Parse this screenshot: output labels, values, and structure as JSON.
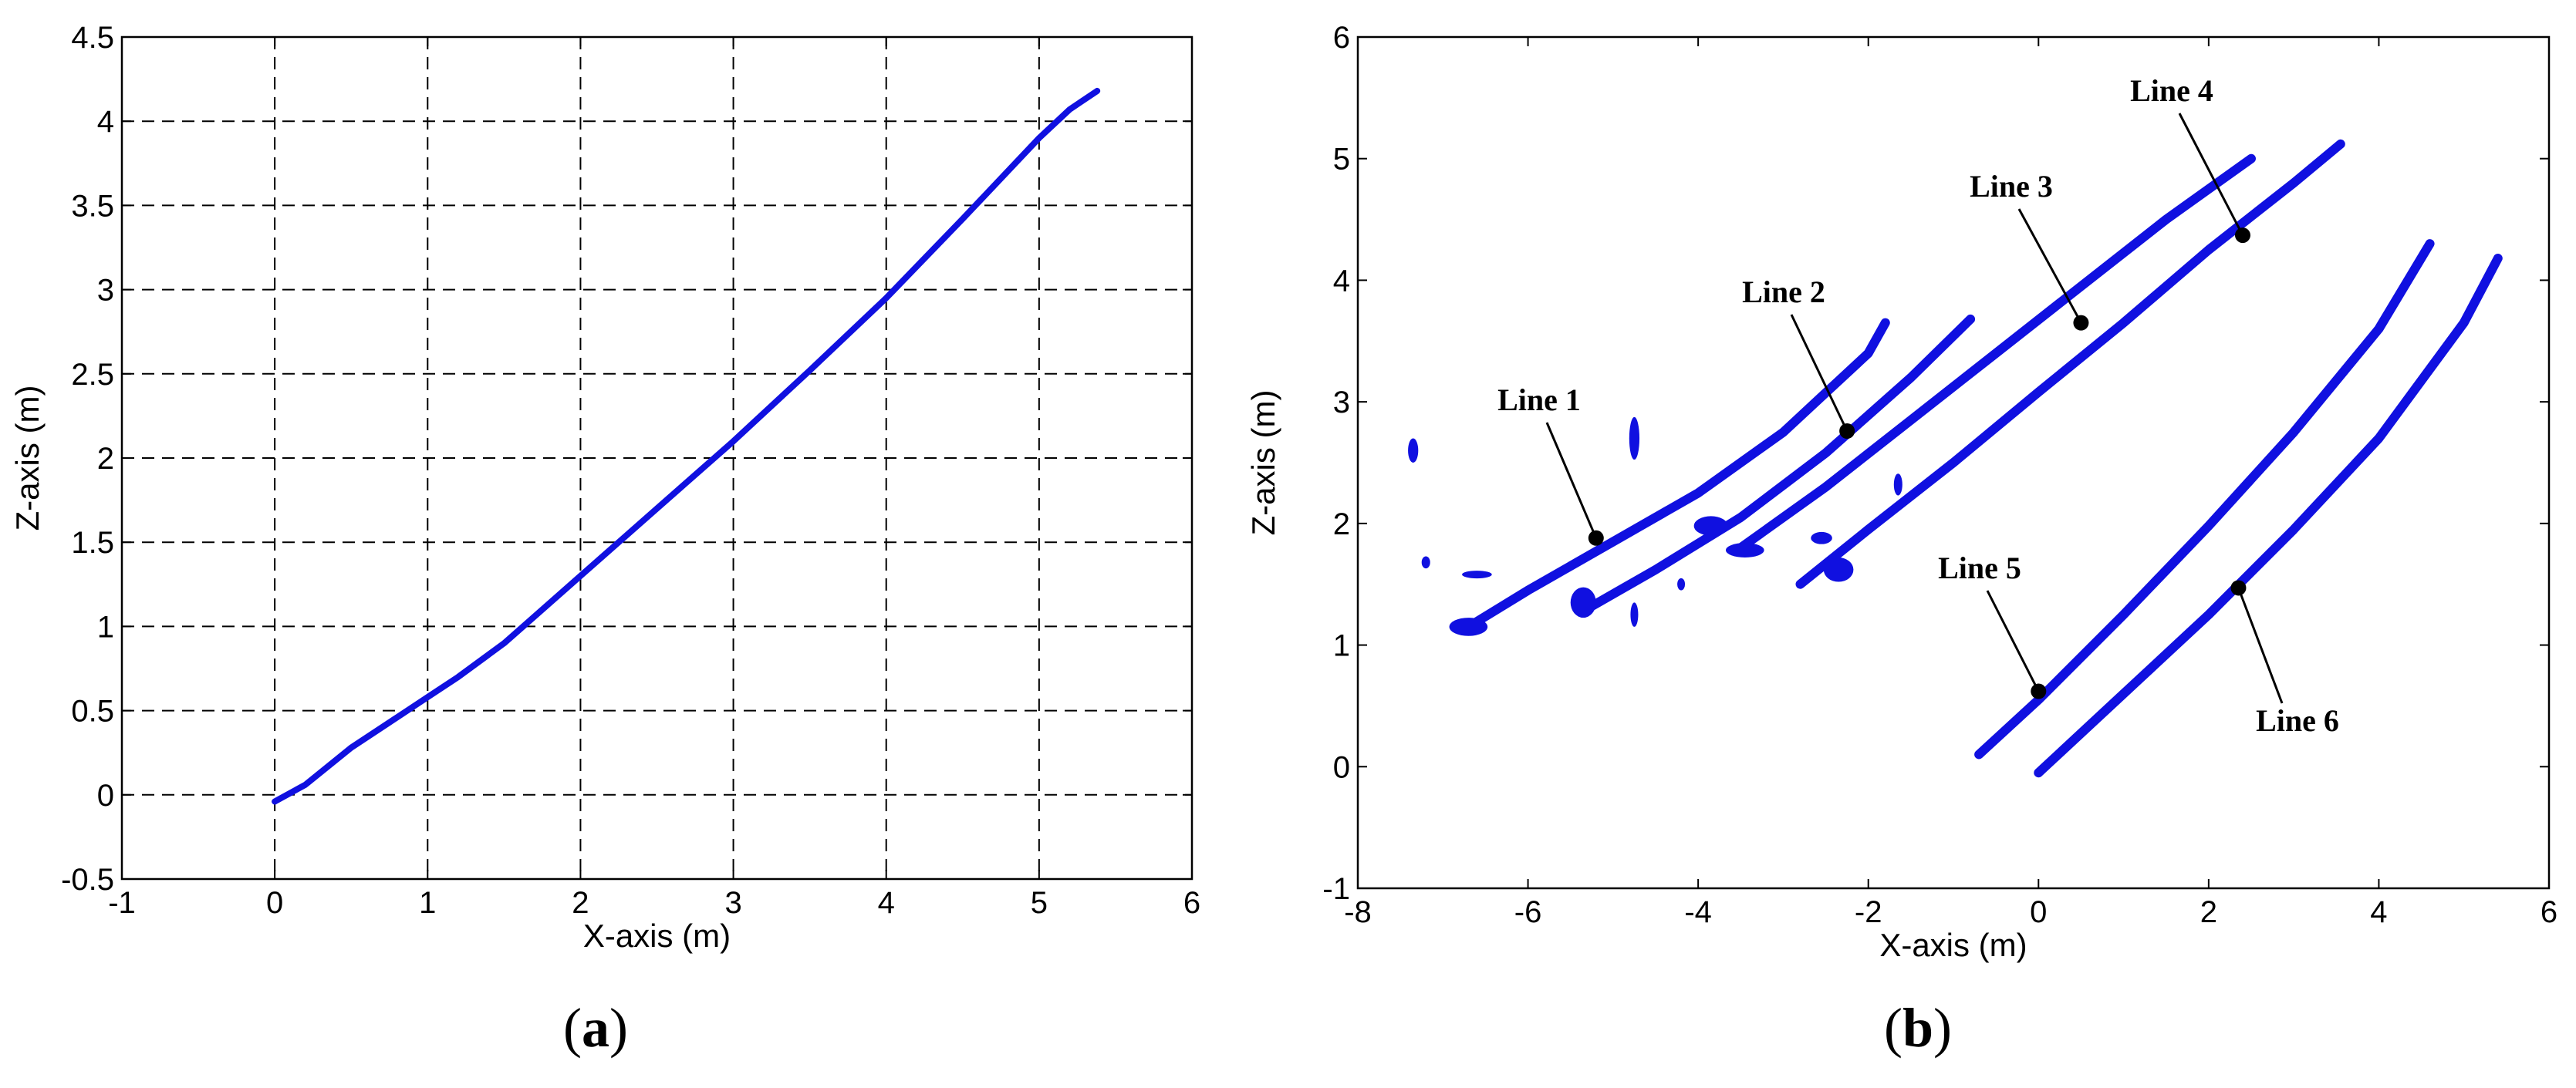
{
  "panels": [
    {
      "prefix": "(",
      "letter": "a",
      "suffix": ")"
    },
    {
      "prefix": "(",
      "letter": "b",
      "suffix": ")"
    }
  ],
  "chart_data": [
    {
      "type": "line",
      "xlabel": "X-axis (m)",
      "ylabel": "Z-axis (m)",
      "xlim": [
        -1,
        6
      ],
      "ylim": [
        -0.5,
        4.5
      ],
      "xticks": [
        "-1",
        "0",
        "1",
        "2",
        "3",
        "4",
        "5",
        "6"
      ],
      "yticks": [
        "-0.5",
        "0",
        "0.5",
        "1",
        "1.5",
        "2",
        "2.5",
        "3",
        "3.5",
        "4",
        "4.5"
      ],
      "grid": true,
      "color": "#1010e0",
      "series": [
        {
          "x": [
            0,
            0.2,
            0.5,
            0.8,
            1.0,
            1.2,
            1.5,
            2.0,
            2.5,
            3.0,
            3.5,
            4.0,
            4.5,
            5.0,
            5.2,
            5.38
          ],
          "y": [
            -0.04,
            0.06,
            0.28,
            0.46,
            0.58,
            0.7,
            0.9,
            1.3,
            1.7,
            2.1,
            2.52,
            2.95,
            3.42,
            3.9,
            4.07,
            4.18
          ]
        }
      ]
    },
    {
      "type": "scatter",
      "xlabel": "X-axis (m)",
      "ylabel": "Z-axis (m)",
      "xlim": [
        -8,
        6
      ],
      "ylim": [
        -1,
        6
      ],
      "xticks": [
        "-8",
        "-6",
        "-4",
        "-2",
        "0",
        "2",
        "4",
        "6"
      ],
      "yticks": [
        "-1",
        "0",
        "1",
        "2",
        "3",
        "4",
        "5",
        "6"
      ],
      "grid": false,
      "color": "#1010e0",
      "series": [
        {
          "x": [
            -6.7,
            -6.0,
            -5.0,
            -4.0,
            -3.0,
            -2.0,
            -1.8
          ],
          "y": [
            1.15,
            1.45,
            1.85,
            2.25,
            2.75,
            3.4,
            3.65
          ]
        },
        {
          "x": [
            -5.3,
            -4.5,
            -3.5,
            -2.5,
            -1.5,
            -0.8
          ],
          "y": [
            1.3,
            1.62,
            2.05,
            2.58,
            3.2,
            3.68
          ]
        },
        {
          "x": [
            -3.5,
            -2.5,
            -1.5,
            -0.5,
            0.5,
            1.5,
            2.5
          ],
          "y": [
            1.8,
            2.3,
            2.85,
            3.4,
            3.95,
            4.5,
            5.0
          ]
        },
        {
          "x": [
            -2.8,
            -2.0,
            -1.0,
            0.0,
            1.0,
            2.0,
            3.0,
            3.55
          ],
          "y": [
            1.5,
            1.95,
            2.5,
            3.08,
            3.65,
            4.25,
            4.8,
            5.12
          ]
        },
        {
          "x": [
            -0.7,
            0.0,
            1.0,
            2.0,
            3.0,
            4.0,
            4.6
          ],
          "y": [
            0.1,
            0.55,
            1.25,
            1.98,
            2.75,
            3.6,
            4.3
          ]
        },
        {
          "x": [
            0.0,
            1.0,
            2.0,
            3.0,
            4.0,
            5.0,
            5.4
          ],
          "y": [
            -0.05,
            0.6,
            1.25,
            1.95,
            2.7,
            3.65,
            4.18
          ]
        }
      ],
      "clusters": [
        {
          "x": -7.35,
          "y": 2.6,
          "w": 0.12,
          "h": 0.2
        },
        {
          "x": -4.75,
          "y": 2.7,
          "w": 0.12,
          "h": 0.35
        },
        {
          "x": -7.2,
          "y": 1.68,
          "w": 0.1,
          "h": 0.1
        },
        {
          "x": -6.6,
          "y": 1.58,
          "w": 0.35,
          "h": 0.06
        },
        {
          "x": -6.7,
          "y": 1.15,
          "w": 0.45,
          "h": 0.15
        },
        {
          "x": -5.35,
          "y": 1.35,
          "w": 0.3,
          "h": 0.25
        },
        {
          "x": -4.75,
          "y": 1.25,
          "w": 0.06,
          "h": 0.2
        },
        {
          "x": -4.2,
          "y": 1.5,
          "w": 0.08,
          "h": 0.1
        },
        {
          "x": -3.85,
          "y": 1.98,
          "w": 0.4,
          "h": 0.16
        },
        {
          "x": -3.45,
          "y": 1.78,
          "w": 0.45,
          "h": 0.12
        },
        {
          "x": -2.55,
          "y": 1.88,
          "w": 0.25,
          "h": 0.1
        },
        {
          "x": -2.35,
          "y": 1.62,
          "w": 0.35,
          "h": 0.2
        },
        {
          "x": -1.65,
          "y": 2.32,
          "w": 0.1,
          "h": 0.18
        }
      ],
      "annotations": [
        {
          "text": "Line 1",
          "x": -5.2,
          "y": 1.88
        },
        {
          "text": "Line 2",
          "x": -2.25,
          "y": 2.76
        },
        {
          "text": "Line 3",
          "x": 0.5,
          "y": 3.65
        },
        {
          "text": "Line 4",
          "x": 2.4,
          "y": 4.37
        },
        {
          "text": "Line 5",
          "x": 0.0,
          "y": 0.62
        },
        {
          "text": "Line 6",
          "x": 2.35,
          "y": 1.47
        }
      ]
    }
  ]
}
